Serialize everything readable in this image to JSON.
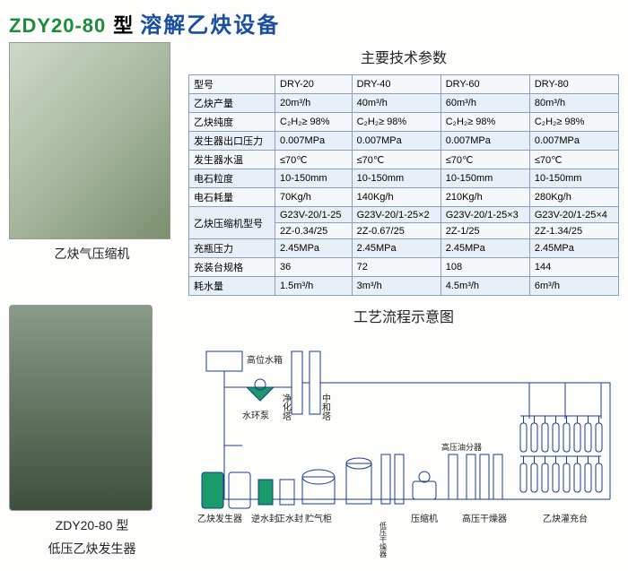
{
  "header": {
    "model_code": "ZDY20-80",
    "model_type_suffix": "型",
    "product_name": "溶解乙炔设备"
  },
  "spec_section": {
    "title": "主要技术参数",
    "header_label": "型号",
    "models": [
      "DRY-20",
      "DRY-40",
      "DRY-60",
      "DRY-80"
    ],
    "rows": [
      {
        "label": "乙炔产量",
        "v": [
          "20m³/h",
          "40m³/h",
          "60m³/h",
          "80m³/h"
        ]
      },
      {
        "label": "乙炔纯度",
        "v": [
          "C₂H₂≥ 98%",
          "C₂H₂≥ 98%",
          "C₂H₂≥ 98%",
          "C₂H₂≥ 98%"
        ]
      },
      {
        "label": "发生器出口压力",
        "v": [
          "0.007MPa",
          "0.007MPa",
          "0.007MPa",
          "0.007MPa"
        ]
      },
      {
        "label": "发生器水温",
        "v": [
          "≤70℃",
          "≤70℃",
          "≤70℃",
          "≤70℃"
        ]
      },
      {
        "label": "电石粒度",
        "v": [
          "10-150mm",
          "10-150mm",
          "10-150mm",
          "10-150mm"
        ]
      },
      {
        "label": "电石耗量",
        "v": [
          "70Kg/h",
          "140Kg/h",
          "210Kg/h",
          "280Kg/h"
        ]
      }
    ],
    "compressor_label": "乙炔压缩机型号",
    "compressor_row1": [
      "G23V-20/1-25",
      "G23V-20/1-25×2",
      "G23V-20/1-25×3",
      "G23V-20/1-25×4"
    ],
    "compressor_row2": [
      "2Z-0.34/25",
      "2Z-0.67/25",
      "2Z-1/25",
      "2Z-1.34/25"
    ],
    "rows2": [
      {
        "label": "充瓶压力",
        "v": [
          "2.45MPa",
          "2.45MPa",
          "2.45MPa",
          "2.45MPa"
        ]
      },
      {
        "label": "充装台规格",
        "v": [
          "36",
          "72",
          "108",
          "144"
        ]
      },
      {
        "label": "耗水量",
        "v": [
          "1.5m³/h",
          "3m³/h",
          "4.5m³/h",
          "6m³/h"
        ]
      }
    ]
  },
  "images": {
    "compressor_caption": "乙炔气压缩机",
    "generator_caption_l1": "ZDY20-80 型",
    "generator_caption_l2": "低压乙炔发生器"
  },
  "flow": {
    "title": "工艺流程示意图",
    "labels": {
      "tank": "高位水箱",
      "pump": "水环泵",
      "purifier": "净化塔",
      "neutralizer": "中和塔",
      "generator": "乙炔发生器",
      "backseal": "逆水封",
      "frontseal": "正水封",
      "gasholder": "贮气柜",
      "lpdryer": "低压干燥器",
      "compressor2": "压缩机",
      "hpoil": "高压油分器",
      "hpdryer": "高压干燥器",
      "filling": "乙炔灌充台"
    },
    "stroke": "#1a3a8a",
    "fill_green": "#1a9a6a",
    "fill_white": "#ffffff"
  }
}
